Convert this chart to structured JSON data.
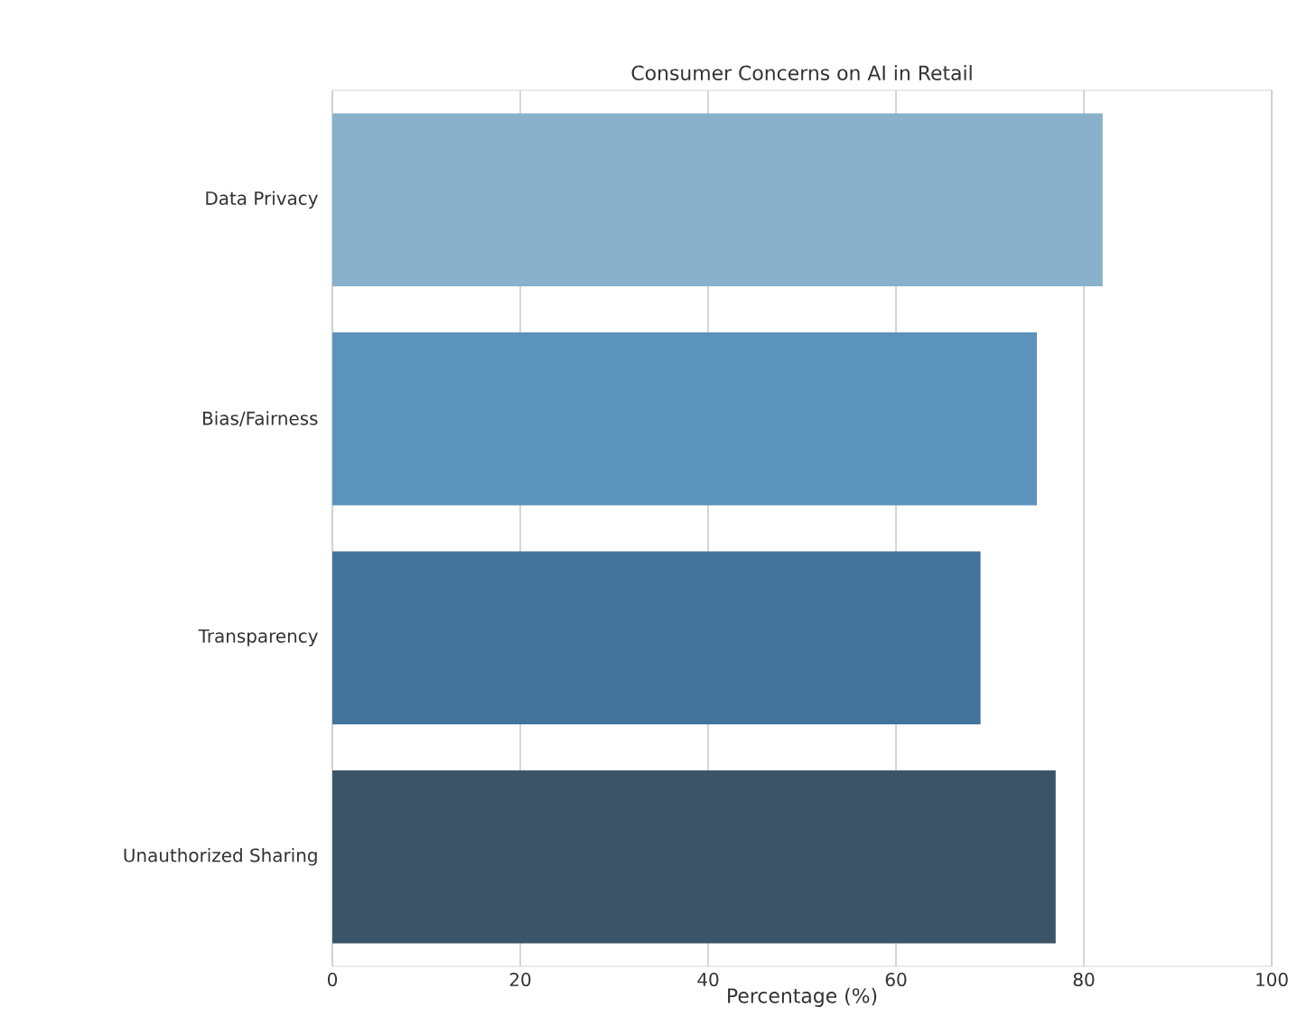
{
  "chart_data": {
    "type": "bar",
    "orientation": "horizontal",
    "title": "Consumer Concerns on AI in Retail",
    "xlabel": "Percentage (%)",
    "categories": [
      "Data Privacy",
      "Bias/Fairness",
      "Transparency",
      "Unauthorized Sharing"
    ],
    "values": [
      82,
      75,
      69,
      77
    ],
    "colors": [
      "#89b1cc",
      "#5b93bb",
      "#43739a",
      "#3c5468"
    ],
    "xlim": [
      0,
      100
    ],
    "xticks": [
      0,
      20,
      40,
      60,
      80,
      100
    ],
    "grid": "x"
  }
}
